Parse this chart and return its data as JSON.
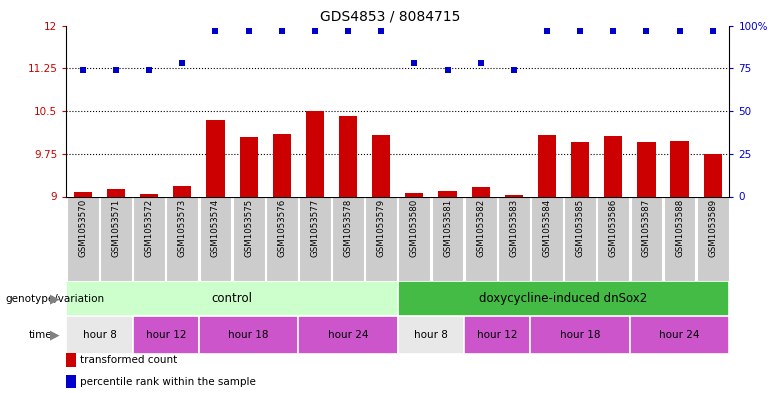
{
  "title": "GDS4853 / 8084715",
  "samples": [
    "GSM1053570",
    "GSM1053571",
    "GSM1053572",
    "GSM1053573",
    "GSM1053574",
    "GSM1053575",
    "GSM1053576",
    "GSM1053577",
    "GSM1053578",
    "GSM1053579",
    "GSM1053580",
    "GSM1053581",
    "GSM1053582",
    "GSM1053583",
    "GSM1053584",
    "GSM1053585",
    "GSM1053586",
    "GSM1053587",
    "GSM1053588",
    "GSM1053589"
  ],
  "bar_values": [
    9.08,
    9.14,
    9.05,
    9.18,
    10.35,
    10.05,
    10.1,
    10.5,
    10.42,
    10.08,
    9.06,
    9.1,
    9.16,
    9.02,
    10.08,
    9.95,
    10.06,
    9.96,
    9.97,
    9.75
  ],
  "blue_y_values": [
    74,
    74,
    74,
    78,
    97,
    97,
    97,
    97,
    97,
    97,
    78,
    74,
    78,
    74,
    97,
    97,
    97,
    97,
    97,
    97
  ],
  "ylim_left": [
    9.0,
    12.0
  ],
  "ylim_right": [
    0,
    100
  ],
  "yticks_left": [
    9.0,
    9.75,
    10.5,
    11.25,
    12.0
  ],
  "ytick_labels_left": [
    "9",
    "9.75",
    "10.5",
    "11.25",
    "12"
  ],
  "yticks_right": [
    0,
    25,
    50,
    75,
    100
  ],
  "ytick_labels_right": [
    "0",
    "25",
    "50",
    "75",
    "100%"
  ],
  "hlines": [
    9.75,
    10.5,
    11.25
  ],
  "bar_color": "#cc0000",
  "dot_color": "#0000cc",
  "bar_width": 0.55,
  "genotype_groups": [
    {
      "label": "control",
      "start": 0,
      "end": 9,
      "color": "#ccffcc"
    },
    {
      "label": "doxycycline-induced dnSox2",
      "start": 10,
      "end": 19,
      "color": "#44bb44"
    }
  ],
  "time_groups": [
    {
      "label": "hour 8",
      "start": 0,
      "end": 1,
      "color": "#e8e8e8"
    },
    {
      "label": "hour 12",
      "start": 2,
      "end": 3,
      "color": "#cc55cc"
    },
    {
      "label": "hour 18",
      "start": 4,
      "end": 6,
      "color": "#cc55cc"
    },
    {
      "label": "hour 24",
      "start": 7,
      "end": 9,
      "color": "#cc55cc"
    },
    {
      "label": "hour 8",
      "start": 10,
      "end": 11,
      "color": "#e8e8e8"
    },
    {
      "label": "hour 12",
      "start": 12,
      "end": 13,
      "color": "#cc55cc"
    },
    {
      "label": "hour 18",
      "start": 14,
      "end": 16,
      "color": "#cc55cc"
    },
    {
      "label": "hour 24",
      "start": 17,
      "end": 19,
      "color": "#cc55cc"
    }
  ],
  "legend_items": [
    {
      "label": "transformed count",
      "color": "#cc0000"
    },
    {
      "label": "percentile rank within the sample",
      "color": "#0000cc"
    }
  ],
  "bg_color": "#ffffff",
  "sample_box_color": "#cccccc",
  "label_fontsize": 7.0,
  "tick_fontsize": 7.5,
  "title_fontsize": 10
}
